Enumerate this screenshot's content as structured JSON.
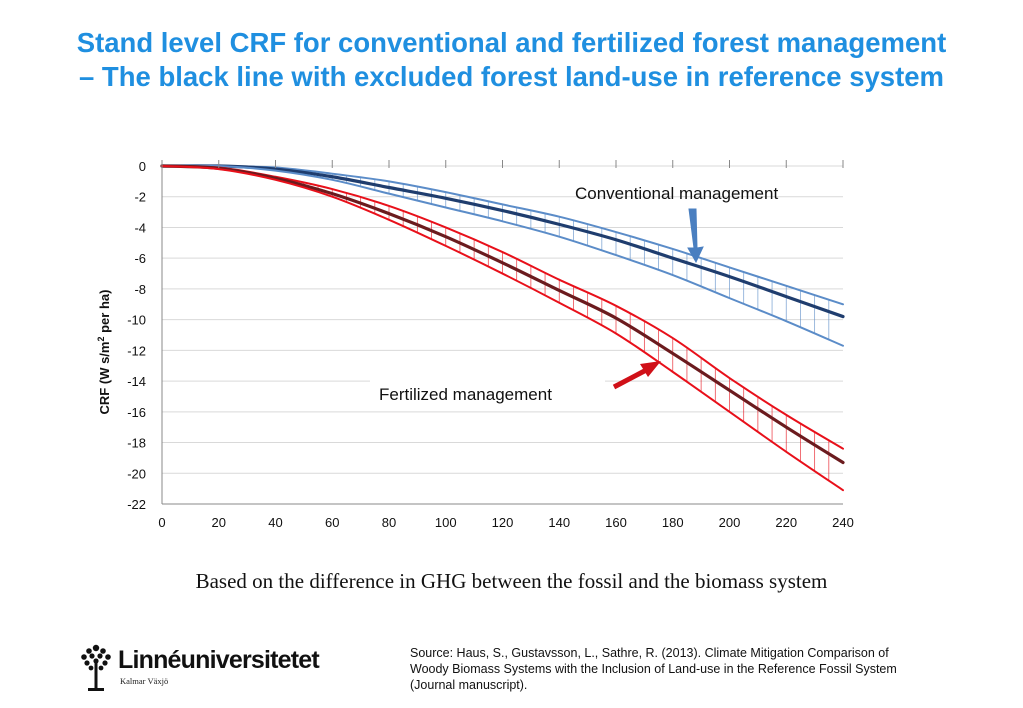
{
  "title": {
    "line1": "Stand level CRF for conventional and fertilized forest management",
    "line2": "– The black line with excluded forest land-use in reference system"
  },
  "subtitle": "Based on the difference in GHG between the fossil and the biomass system",
  "source": "Source: Haus, S., Gustavsson, L., Sathre, R. (2013). Climate Mitigation Comparison of Woody Biomass Systems with the Inclusion of Land-use in the Reference Fossil System (Journal manuscript).",
  "logo": {
    "wordmark": "Linnéuniversitetet",
    "tagline": "Kalmar Växjö"
  },
  "colors": {
    "title": "#1f8fe0",
    "conv_band": "#5b8cc8",
    "conv_center": "#1f3d6e",
    "fert_band": "#e8101a",
    "fert_center": "#6b1b1e",
    "conv_arrow": "#4a7fc0",
    "fert_arrow": "#d01018"
  },
  "chart_data": {
    "type": "line",
    "ylabel_main": "CRF (W s/m",
    "ylabel_sup": "2",
    "ylabel_tail": " per ha)",
    "xlim": [
      0,
      240
    ],
    "ylim": [
      -22,
      0
    ],
    "xticks": [
      0,
      20,
      40,
      60,
      80,
      100,
      120,
      140,
      160,
      180,
      200,
      220,
      240
    ],
    "yticks": [
      0,
      -2,
      -4,
      -6,
      -8,
      -10,
      -12,
      -14,
      -16,
      -18,
      -20,
      -22
    ],
    "grid": "horizontal",
    "annotations": [
      {
        "text": "Conventional management",
        "points_to": "conventional"
      },
      {
        "text": "Fertilized management",
        "points_to": "fertilized"
      }
    ],
    "x": [
      0,
      20,
      40,
      60,
      80,
      100,
      120,
      140,
      160,
      180,
      200,
      220,
      240
    ],
    "series": [
      {
        "group": "conventional",
        "role": "upper",
        "values": [
          0,
          0,
          -0.1,
          -0.5,
          -1.0,
          -1.7,
          -2.5,
          -3.3,
          -4.3,
          -5.4,
          -6.6,
          -7.8,
          -9.0
        ]
      },
      {
        "group": "conventional",
        "role": "center",
        "values": [
          0,
          0,
          -0.2,
          -0.7,
          -1.4,
          -2.1,
          -2.9,
          -3.8,
          -4.8,
          -6.0,
          -7.2,
          -8.5,
          -9.8
        ]
      },
      {
        "group": "conventional",
        "role": "lower",
        "values": [
          0,
          0,
          -0.3,
          -0.9,
          -1.8,
          -2.7,
          -3.6,
          -4.6,
          -5.8,
          -7.1,
          -8.6,
          -10.1,
          -11.7
        ]
      },
      {
        "group": "fertilized",
        "role": "upper",
        "values": [
          0,
          -0.1,
          -0.7,
          -1.5,
          -2.6,
          -4.0,
          -5.6,
          -7.4,
          -9.1,
          -11.2,
          -13.8,
          -16.2,
          -18.4
        ]
      },
      {
        "group": "fertilized",
        "role": "center",
        "values": [
          0,
          -0.15,
          -0.8,
          -1.8,
          -3.1,
          -4.6,
          -6.3,
          -8.1,
          -9.9,
          -12.2,
          -14.6,
          -17.0,
          -19.3
        ]
      },
      {
        "group": "fertilized",
        "role": "lower",
        "values": [
          0,
          -0.2,
          -0.9,
          -2.0,
          -3.5,
          -5.2,
          -7.0,
          -8.9,
          -10.9,
          -13.4,
          -16.0,
          -18.6,
          -21.1
        ]
      }
    ]
  }
}
